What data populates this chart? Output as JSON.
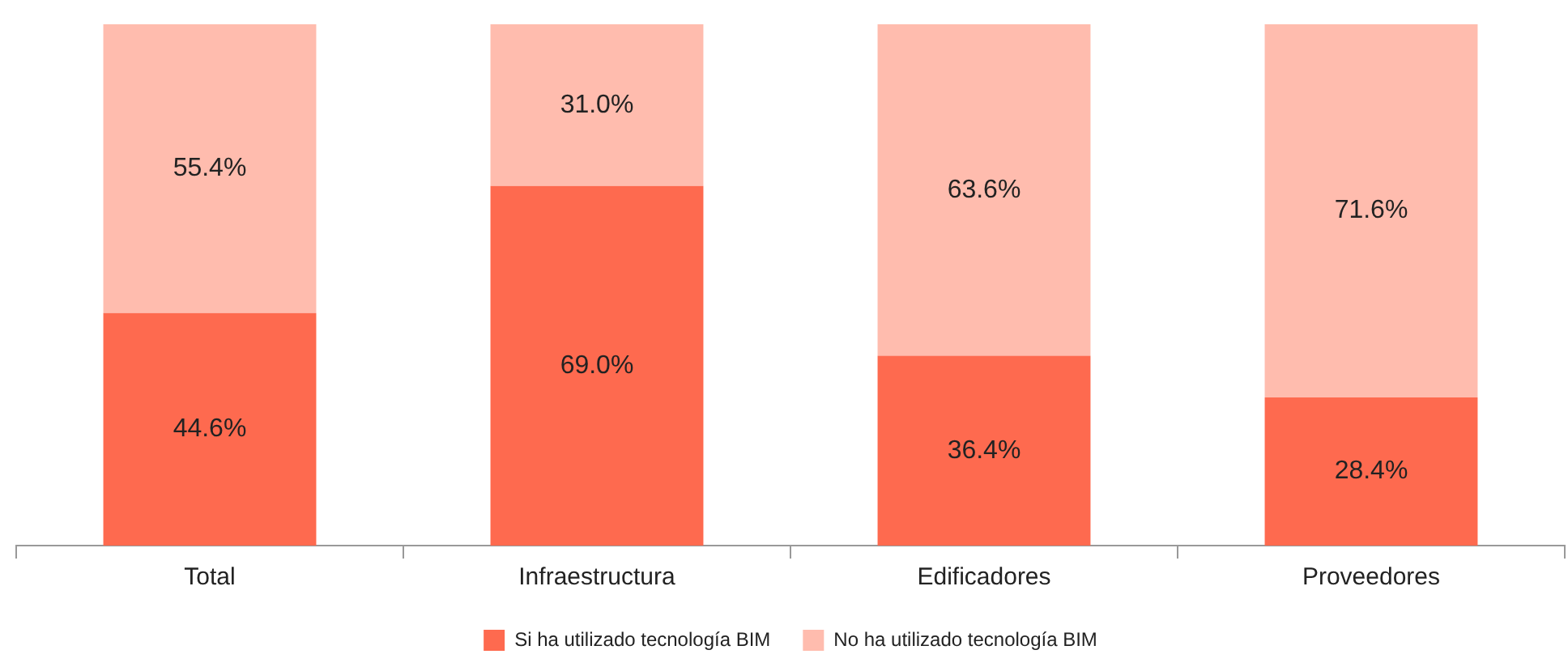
{
  "chart_data": {
    "type": "bar",
    "stacked": true,
    "categories": [
      "Total",
      "Infraestructura",
      "Edificadores",
      "Proveedores"
    ],
    "series": [
      {
        "name": "Si ha utilizado tecnología BIM",
        "color": "#fe6a4f",
        "values": [
          44.6,
          69.0,
          36.4,
          28.4
        ],
        "value_labels": [
          "44.6%",
          "69.0%",
          "36.4%",
          "28.4%"
        ]
      },
      {
        "name": "No ha utilizado tecnología BIM",
        "color": "#ffbcae",
        "values": [
          55.4,
          31.0,
          63.6,
          71.6
        ],
        "value_labels": [
          "55.4%",
          "31.0%",
          "63.6%",
          "71.6%"
        ]
      }
    ],
    "legend": "bottom",
    "grid": false,
    "tick_labels": "x"
  }
}
